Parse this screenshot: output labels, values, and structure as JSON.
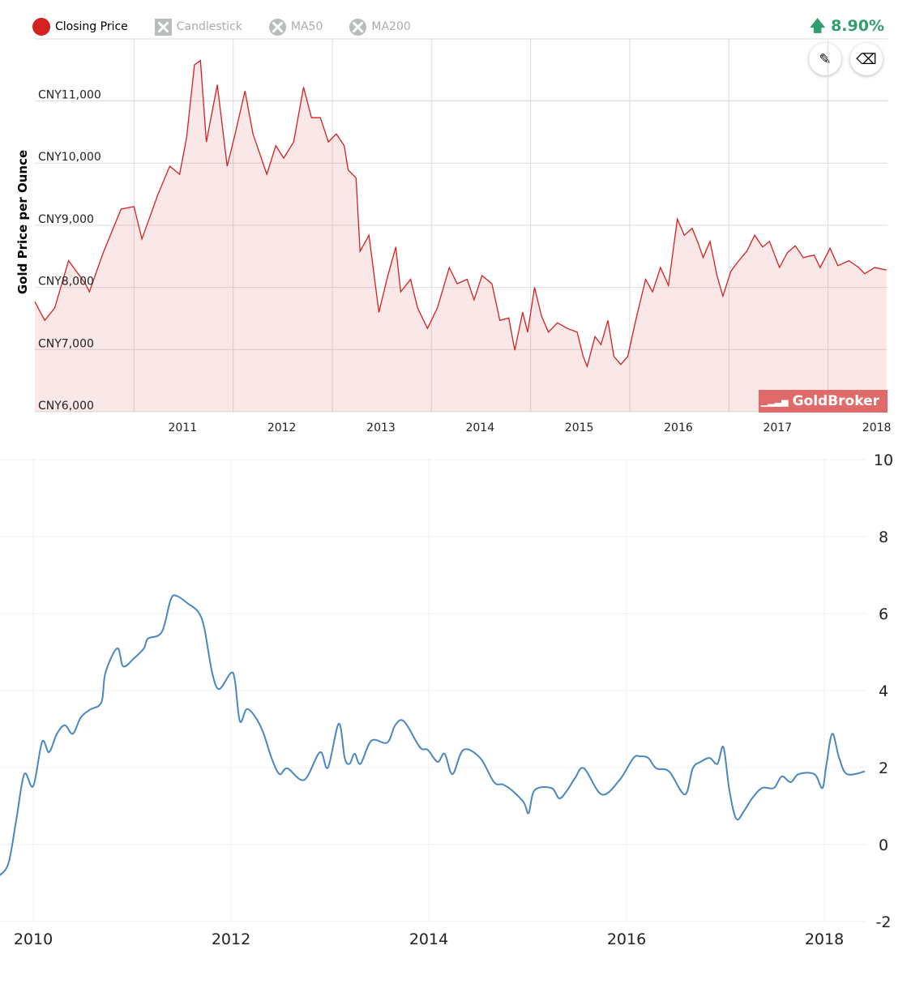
{
  "legend": {
    "closing": "Closing Price",
    "candlestick": "Candlestick",
    "ma50": "MA50",
    "ma200": "MA200"
  },
  "change": {
    "arrow": "🡅",
    "value": "8.90%",
    "color": "#2f9e6a"
  },
  "tools": {
    "draw": "pencil-icon",
    "erase": "eraser-icon"
  },
  "brand": "GoldBroker",
  "chart_data": [
    {
      "type": "area",
      "ylabel": "Gold Price per Ounce",
      "ylim": [
        6000,
        11900
      ],
      "xlim": [
        2010.0,
        2018.6
      ],
      "yticks": [
        {
          "v": 11000,
          "label": "CNY11,000"
        },
        {
          "v": 10000,
          "label": "CNY10,000"
        },
        {
          "v": 9000,
          "label": "CNY9,000"
        },
        {
          "v": 8000,
          "label": "CNY8,000"
        },
        {
          "v": 7000,
          "label": "CNY7,000"
        },
        {
          "v": 6000,
          "label": "CNY6,000"
        }
      ],
      "xticks": [
        {
          "v": 2011,
          "label": "2011"
        },
        {
          "v": 2012,
          "label": "2012"
        },
        {
          "v": 2013,
          "label": "2013"
        },
        {
          "v": 2014,
          "label": "2014"
        },
        {
          "v": 2015,
          "label": "2015"
        },
        {
          "v": 2016,
          "label": "2016"
        },
        {
          "v": 2017,
          "label": "2017"
        },
        {
          "v": 2018,
          "label": "2018"
        }
      ],
      "color": "#d42020",
      "x": [
        2010.0,
        2010.1,
        2010.2,
        2010.34,
        2010.51,
        2010.55,
        2010.69,
        2010.87,
        2011.0,
        2011.08,
        2011.24,
        2011.36,
        2011.46,
        2011.53,
        2011.61,
        2011.67,
        2011.73,
        2011.84,
        2011.94,
        2012.02,
        2012.12,
        2012.2,
        2012.34,
        2012.43,
        2012.51,
        2012.61,
        2012.71,
        2012.79,
        2012.88,
        2012.96,
        2013.04,
        2013.12,
        2013.16,
        2013.24,
        2013.28,
        2013.37,
        2013.47,
        2013.55,
        2013.64,
        2013.69,
        2013.79,
        2013.86,
        2013.96,
        2014.06,
        2014.18,
        2014.26,
        2014.36,
        2014.43,
        2014.51,
        2014.61,
        2014.69,
        2014.78,
        2014.84,
        2014.92,
        2014.97,
        2015.04,
        2015.11,
        2015.18,
        2015.27,
        2015.37,
        2015.47,
        2015.53,
        2015.57,
        2015.65,
        2015.71,
        2015.78,
        2015.84,
        2015.91,
        2015.98,
        2016.06,
        2016.16,
        2016.23,
        2016.31,
        2016.39,
        2016.48,
        2016.55,
        2016.63,
        2016.69,
        2016.74,
        2016.81,
        2016.88,
        2016.94,
        2017.02,
        2017.1,
        2017.18,
        2017.26,
        2017.34,
        2017.41,
        2017.51,
        2017.59,
        2017.67,
        2017.75,
        2017.86,
        2017.92,
        2018.02,
        2018.1,
        2018.21,
        2018.31,
        2018.37,
        2018.47,
        2018.59
      ],
      "y": [
        7770,
        7470,
        7670,
        8430,
        8060,
        7930,
        8560,
        9260,
        9300,
        8780,
        9490,
        9950,
        9820,
        10410,
        11580,
        11650,
        10340,
        11260,
        9950,
        10470,
        11160,
        10470,
        9820,
        10280,
        10080,
        10340,
        11220,
        10730,
        10730,
        10340,
        10470,
        10280,
        9890,
        9760,
        8580,
        8840,
        7600,
        8130,
        8650,
        7930,
        8130,
        7670,
        7340,
        7670,
        8320,
        8060,
        8130,
        7800,
        8190,
        8060,
        7470,
        7510,
        6990,
        7600,
        7280,
        8000,
        7540,
        7280,
        7430,
        7340,
        7280,
        6890,
        6730,
        7210,
        7080,
        7470,
        6890,
        6760,
        6890,
        7470,
        8130,
        7930,
        8320,
        8030,
        9100,
        8840,
        8950,
        8710,
        8480,
        8740,
        8190,
        7860,
        8260,
        8430,
        8580,
        8840,
        8650,
        8740,
        8320,
        8560,
        8670,
        8480,
        8520,
        8320,
        8630,
        8350,
        8430,
        8320,
        8220,
        8320,
        8280
      ]
    },
    {
      "type": "line",
      "ylim": [
        -2,
        10
      ],
      "xlim": [
        2009.66,
        2018.7
      ],
      "yticks": [
        {
          "v": 10,
          "label": "10"
        },
        {
          "v": 8,
          "label": "8"
        },
        {
          "v": 6,
          "label": "6"
        },
        {
          "v": 4,
          "label": "4"
        },
        {
          "v": 2,
          "label": "2"
        },
        {
          "v": 0,
          "label": "0"
        },
        {
          "v": -2,
          "label": "-2"
        }
      ],
      "xticks": [
        {
          "v": 2010,
          "label": "2010"
        },
        {
          "v": 2012,
          "label": "2012"
        },
        {
          "v": 2014,
          "label": "2014"
        },
        {
          "v": 2016,
          "label": "2016"
        },
        {
          "v": 2018,
          "label": "2018"
        }
      ],
      "color": "#4a87c0",
      "x": [
        2009.66,
        2009.75,
        2009.83,
        2009.91,
        2010.0,
        2010.09,
        2010.16,
        2010.24,
        2010.32,
        2010.4,
        2010.48,
        2010.57,
        2010.69,
        2010.73,
        2010.85,
        2010.91,
        2011.02,
        2011.12,
        2011.16,
        2011.3,
        2011.39,
        2011.45,
        2011.57,
        2011.67,
        2011.73,
        2011.81,
        2011.88,
        2012.0,
        2012.04,
        2012.09,
        2012.16,
        2012.25,
        2012.33,
        2012.41,
        2012.49,
        2012.57,
        2012.74,
        2012.9,
        2012.98,
        2013.09,
        2013.15,
        2013.2,
        2013.25,
        2013.31,
        2013.42,
        2013.58,
        2013.66,
        2013.75,
        2013.91,
        2013.99,
        2014.09,
        2014.16,
        2014.24,
        2014.35,
        2014.52,
        2014.66,
        2014.75,
        2014.84,
        2014.96,
        2015.01,
        2015.07,
        2015.24,
        2015.32,
        2015.4,
        2015.48,
        2015.57,
        2015.75,
        2015.93,
        2016.07,
        2016.14,
        2016.22,
        2016.3,
        2016.43,
        2016.59,
        2016.67,
        2016.75,
        2016.84,
        2016.92,
        2016.98,
        2017.04,
        2017.11,
        2017.19,
        2017.27,
        2017.37,
        2017.49,
        2017.57,
        2017.66,
        2017.74,
        2017.9,
        2017.98,
        2018.02,
        2018.08,
        2018.15,
        2018.23,
        2018.41
      ],
      "y": [
        -0.8,
        -0.48,
        0.67,
        1.83,
        1.52,
        2.67,
        2.4,
        2.88,
        3.1,
        2.88,
        3.3,
        3.5,
        3.7,
        4.46,
        5.1,
        4.63,
        4.84,
        5.1,
        5.35,
        5.52,
        6.36,
        6.46,
        6.25,
        6.04,
        5.62,
        4.46,
        4.04,
        4.46,
        4.25,
        3.2,
        3.52,
        3.3,
        2.88,
        2.25,
        1.83,
        1.98,
        1.68,
        2.4,
        2.0,
        3.14,
        2.25,
        2.1,
        2.36,
        2.1,
        2.7,
        2.65,
        3.1,
        3.2,
        2.53,
        2.46,
        2.15,
        2.36,
        1.83,
        2.46,
        2.25,
        1.62,
        1.56,
        1.41,
        1.1,
        0.82,
        1.41,
        1.47,
        1.2,
        1.41,
        1.73,
        1.98,
        1.3,
        1.68,
        2.25,
        2.29,
        2.25,
        1.98,
        1.9,
        1.3,
        1.98,
        2.15,
        2.25,
        2.1,
        2.53,
        1.41,
        0.67,
        0.88,
        1.2,
        1.47,
        1.47,
        1.77,
        1.62,
        1.83,
        1.83,
        1.47,
        2.05,
        2.88,
        2.25,
        1.83,
        1.9
      ]
    }
  ]
}
